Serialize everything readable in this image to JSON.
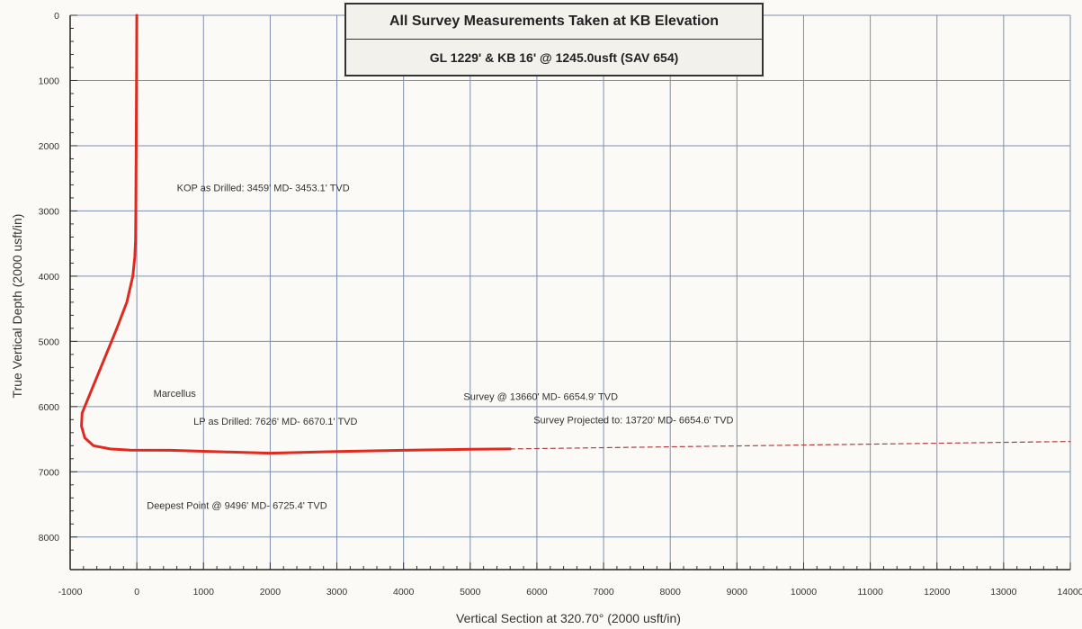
{
  "header": {
    "line1": "All Survey Measurements Taken at KB Elevation",
    "line2": "GL 1229' & KB 16' @ 1245.0usft (SAV 654)"
  },
  "chart_data": {
    "type": "line",
    "xlabel": "Vertical Section at 320.70° (2000 usft/in)",
    "ylabel": "True Vertical Depth (2000 usft/in)",
    "xlim": [
      -1000,
      14000
    ],
    "ylim": [
      0,
      8500
    ],
    "y_inverted": true,
    "grid": true,
    "x_ticks": [
      -1000,
      0,
      1000,
      2000,
      3000,
      4000,
      5000,
      6000,
      7000,
      8000,
      9000,
      10000,
      11000,
      12000,
      13000,
      14000
    ],
    "y_ticks": [
      0,
      1000,
      2000,
      3000,
      4000,
      5000,
      6000,
      7000,
      8000
    ],
    "series": [
      {
        "color": "#e02a1f",
        "x": [
          0,
          -5,
          -10,
          -15,
          -20,
          -30,
          -60,
          -150,
          -300,
          -500,
          -700,
          -820,
          -830,
          -780,
          -650,
          -400,
          -100,
          500,
          1000,
          2000,
          3000,
          4000,
          5000,
          5600
        ],
        "y": [
          0,
          1000,
          2000,
          3000,
          3453,
          3700,
          4000,
          4400,
          4800,
          5300,
          5800,
          6100,
          6300,
          6480,
          6600,
          6650,
          6668,
          6670,
          6685,
          6715,
          6690,
          6670,
          6655,
          6650
        ]
      },
      {
        "style": "dashed",
        "color": "#b04040",
        "x": [
          5600,
          14000
        ],
        "y": [
          6650,
          6535
        ]
      }
    ],
    "annotations": [
      {
        "text": "KOP as Drilled: 3459' MD- 3453.1' TVD",
        "x": 600,
        "y": 2700
      },
      {
        "text": "Marcellus",
        "x": 250,
        "y": 5850
      },
      {
        "text": "LP as Drilled: 7626' MD- 6670.1' TVD",
        "x": 850,
        "y": 6280
      },
      {
        "text": "Survey @ 13660' MD- 6654.9' TVD",
        "x": 4900,
        "y": 5900
      },
      {
        "text": "Survey Projected to: 13720' MD- 6654.6' TVD",
        "x": 5950,
        "y": 6260
      },
      {
        "text": "Deepest Point @ 9496' MD- 6725.4' TVD",
        "x": 150,
        "y": 7570
      }
    ]
  }
}
